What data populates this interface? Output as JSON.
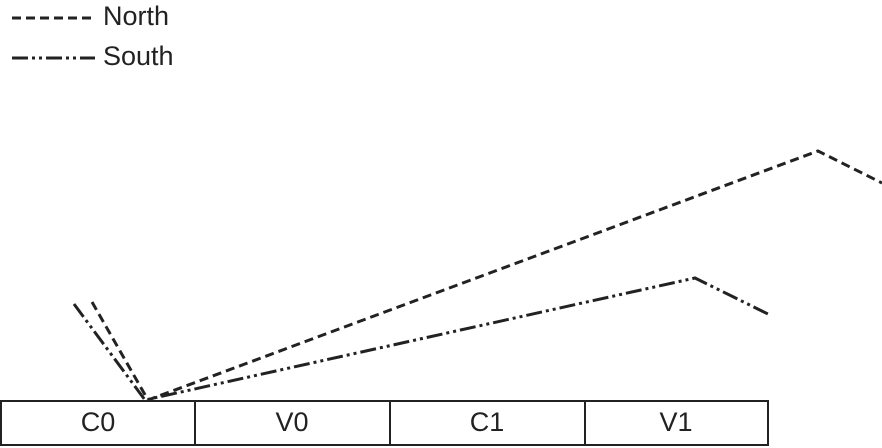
{
  "legend": {
    "items": [
      {
        "label": "North"
      },
      {
        "label": "South"
      }
    ]
  },
  "segments": [
    "C0",
    "V0",
    "C1",
    "V1"
  ]
}
